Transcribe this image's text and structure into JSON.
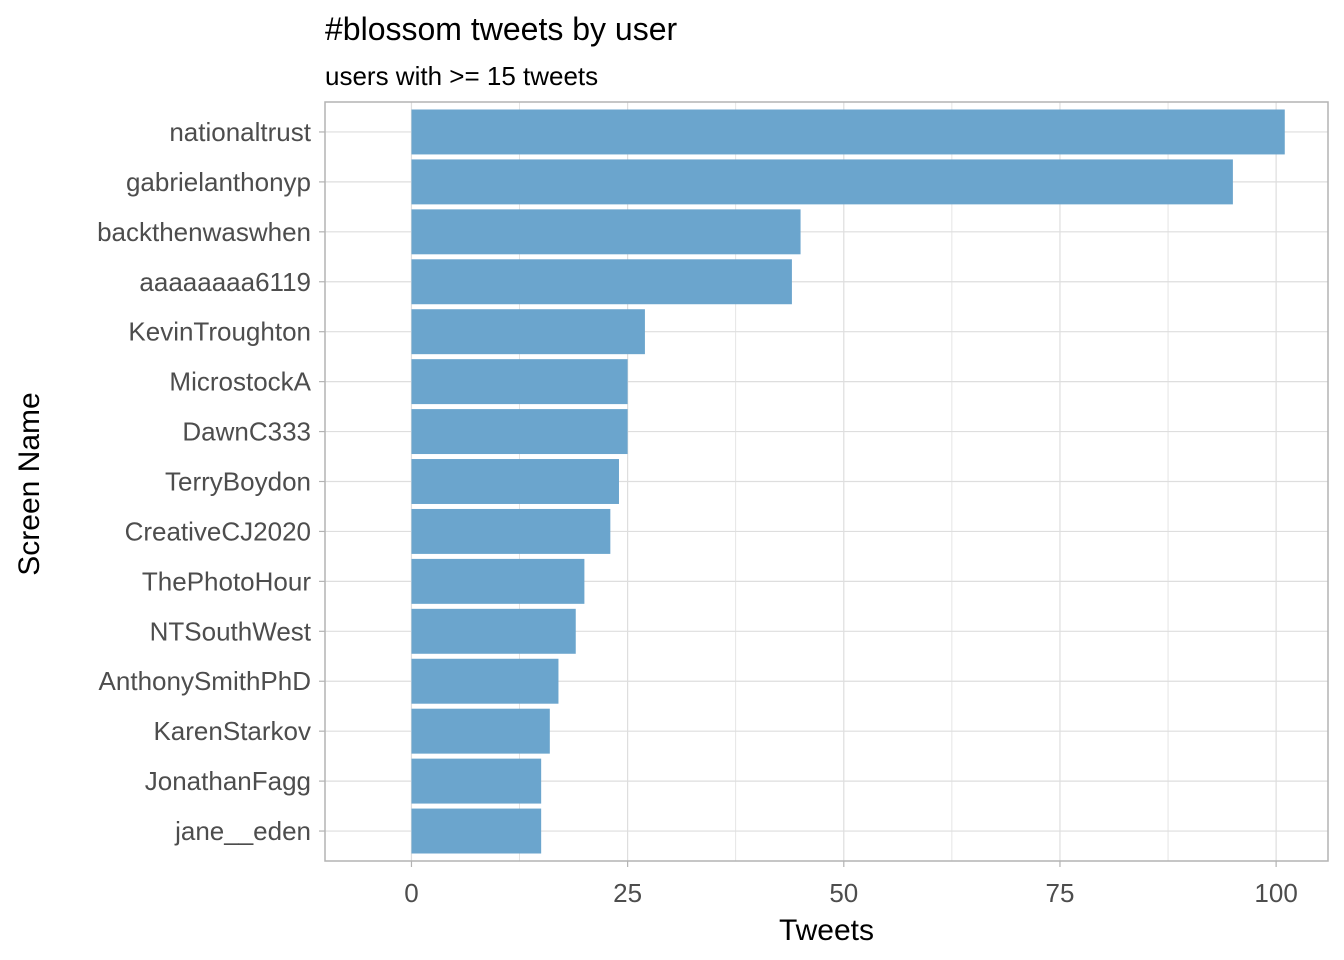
{
  "chart_data": {
    "type": "bar",
    "orientation": "horizontal",
    "title": "#blossom tweets by user",
    "subtitle": "users with >= 15 tweets",
    "xlabel": "Tweets",
    "ylabel": "Screen Name",
    "xlim": [
      -10,
      106
    ],
    "x_ticks": [
      0,
      25,
      50,
      75,
      100
    ],
    "x_tick_labels": [
      "0",
      "25",
      "50",
      "75",
      "100"
    ],
    "grid": true,
    "legend": "none",
    "bar_color": "#6BA5CD",
    "categories": [
      "nationaltrust",
      "gabrielanthonyp",
      "backthenwaswhen",
      "aaaaaaaa6119",
      "KevinTroughton",
      "MicrostockA",
      "DawnC333",
      "TerryBoydon",
      "CreativeCJ2020",
      "ThePhotoHour",
      "NTSouthWest",
      "AnthonySmithPhD",
      "KarenStarkov",
      "JonathanFagg",
      "jane__eden"
    ],
    "values": [
      101,
      95,
      45,
      44,
      27,
      25,
      25,
      24,
      23,
      20,
      19,
      17,
      16,
      15,
      15
    ]
  }
}
